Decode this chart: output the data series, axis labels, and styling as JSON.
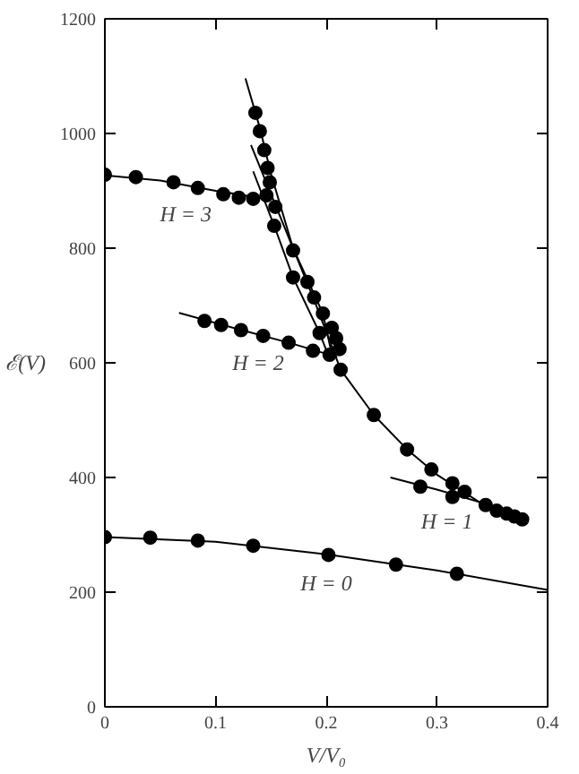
{
  "chart_data": {
    "type": "scatter",
    "xlabel": "V/V₀",
    "ylabel": "ℰ(V)",
    "xlim": [
      0,
      0.4
    ],
    "ylim": [
      0,
      1200
    ],
    "xticks": [
      0,
      0.1,
      0.2,
      0.3,
      0.4
    ],
    "yticks": [
      0,
      200,
      400,
      600,
      800,
      1000,
      1200
    ],
    "grid": false,
    "marker": "circle",
    "series": [
      {
        "color": "#000000",
        "x": [
          0,
          0.028,
          0.062,
          0.084,
          0.107,
          0.121,
          0.134,
          0.141,
          0.146
        ],
        "values": [
          928,
          924,
          915,
          905,
          894,
          888,
          886,
          null,
          892
        ]
      },
      {
        "color": "#000000",
        "x": [
          0.09,
          0.105,
          0.123,
          0.143,
          0.166,
          0.188,
          0.203
        ],
        "values": [
          673,
          666,
          657,
          647,
          635,
          621,
          614
        ]
      },
      {
        "color": "#000000",
        "x": [
          0.285,
          0.314
        ],
        "values": [
          384,
          366
        ]
      },
      {
        "color": "#000000",
        "x": [
          0,
          0.041,
          0.084,
          0.134,
          0.202,
          0.263,
          0.318
        ],
        "values": [
          296,
          295,
          290,
          281,
          265,
          248,
          232
        ]
      },
      {
        "color": "#000000",
        "x": [
          0.136,
          0.14,
          0.144,
          0.147,
          0.149,
          0.154,
          0.153,
          0.17,
          0.17,
          0.183,
          0.189,
          0.197,
          0.194,
          0.205,
          0.209,
          0.212,
          0.213,
          0.243,
          0.273,
          0.295,
          0.314,
          0.325,
          0.344,
          0.354,
          0.363,
          0.37,
          0.377
        ],
        "values": [
          1036,
          1004,
          971,
          940,
          915,
          872,
          839,
          796,
          749,
          741,
          714,
          686,
          652,
          661,
          643,
          624,
          588,
          509,
          449,
          414,
          390,
          375,
          352,
          342,
          337,
          332,
          327
        ]
      },
      {
        "type": "line",
        "marker": "none",
        "name": "H = 3",
        "color": "#000000",
        "x": [
          0,
          0.05,
          0.1,
          0.146
        ],
        "values": [
          927,
          918,
          900,
          886
        ]
      },
      {
        "type": "line",
        "marker": "none",
        "name": "H = 2",
        "color": "#000000",
        "x": [
          0.067,
          0.12,
          0.17,
          0.21
        ],
        "values": [
          687,
          659,
          633,
          610
        ]
      },
      {
        "type": "line",
        "marker": "none",
        "name": "H = 1",
        "color": "#000000",
        "x": [
          0.258,
          0.3,
          0.36
        ],
        "values": [
          400,
          379,
          345
        ]
      },
      {
        "type": "line",
        "marker": "none",
        "name": "H = 0",
        "color": "#000000",
        "x": [
          0,
          0.1,
          0.2,
          0.3,
          0.4
        ],
        "values": [
          296,
          288,
          266,
          238,
          204
        ]
      },
      {
        "type": "line",
        "marker": "none",
        "color": "#000000",
        "x": [
          0.127,
          0.14,
          0.15,
          0.17,
          0.19,
          0.213,
          0.243,
          0.273,
          0.3,
          0.34,
          0.377
        ],
        "values": [
          1096,
          1010,
          930,
          800,
          705,
          588,
          509,
          449,
          405,
          355,
          327
        ]
      },
      {
        "type": "line",
        "marker": "none",
        "color": "#000000",
        "x": [
          0.132,
          0.17,
          0.197,
          0.206
        ],
        "values": [
          980,
          800,
          686,
          606
        ]
      },
      {
        "type": "line",
        "marker": "none",
        "color": "#000000",
        "x": [
          0.134,
          0.153,
          0.17,
          0.194,
          0.2
        ],
        "values": [
          934,
          839,
          749,
          652,
          622
        ]
      }
    ]
  }
}
